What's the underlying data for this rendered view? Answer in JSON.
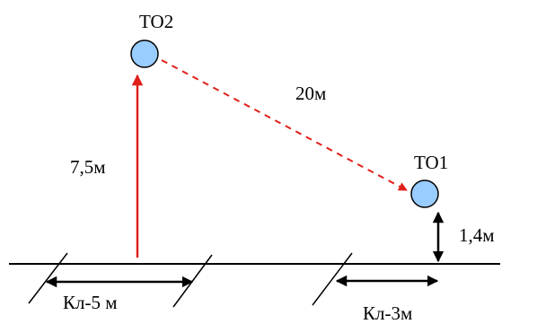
{
  "points": {
    "to2": {
      "label": "ТО2"
    },
    "to1": {
      "label": "ТО1"
    }
  },
  "dimensions": {
    "height_to2": "7,5м",
    "distance_to2_to1": "20м",
    "height_to1": "1,4м"
  },
  "cable_segments": [
    {
      "label": "Кл-5 м"
    },
    {
      "label": "Кл-3м"
    }
  ],
  "colors": {
    "node_fill": "#99CCFF",
    "node_stroke": "#000000",
    "height_arrow": "#E0201A",
    "dashed_arrow": "#E0201A",
    "lines": "#000000"
  }
}
